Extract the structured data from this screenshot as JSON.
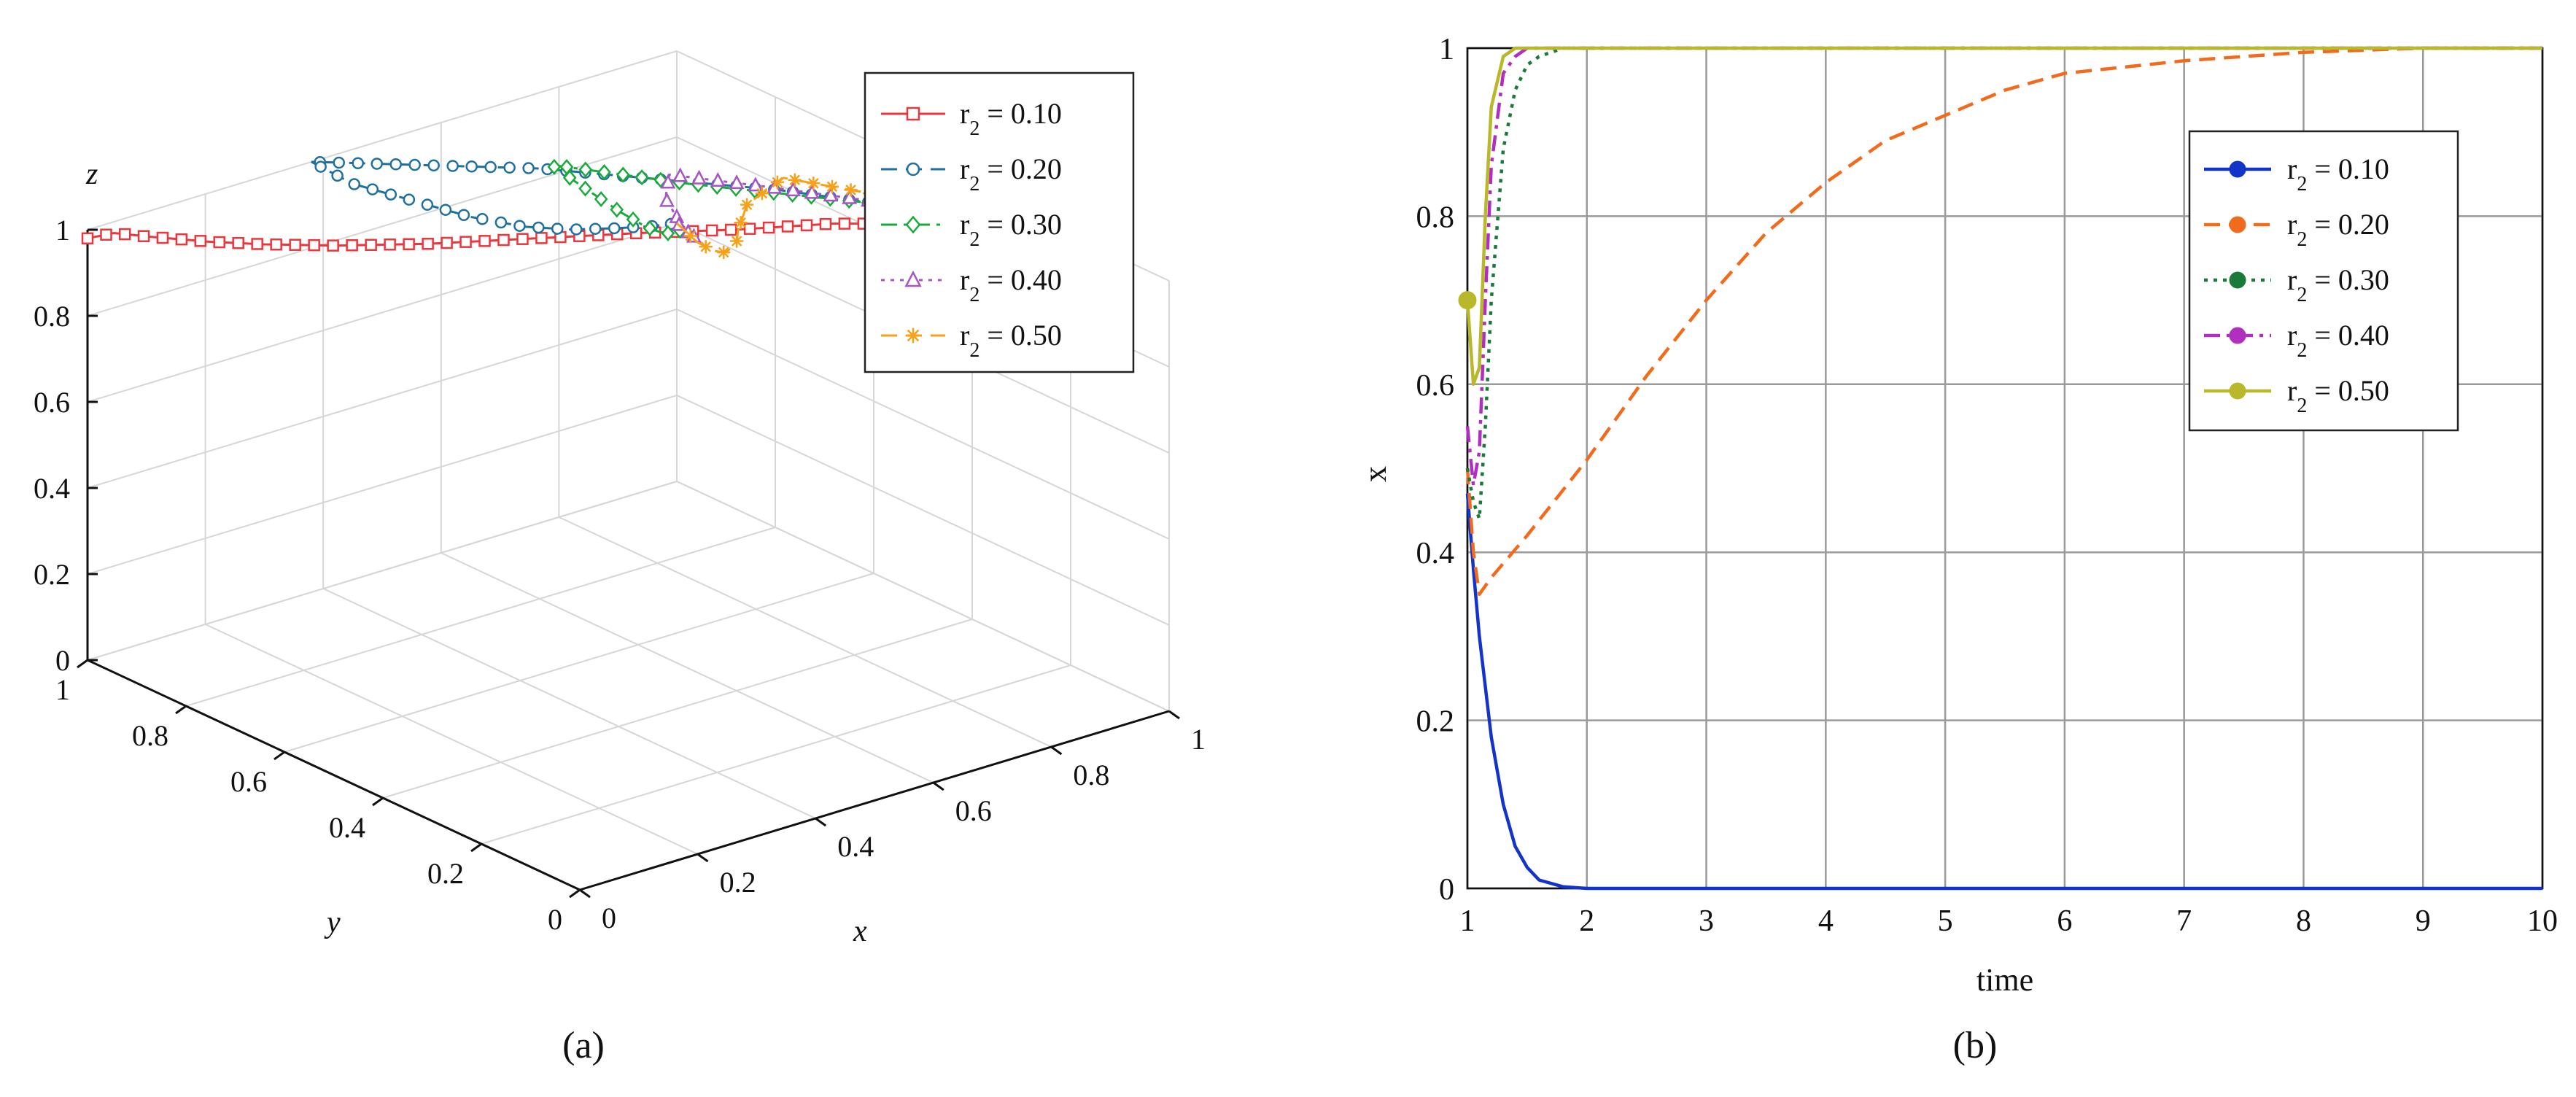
{
  "figure": {
    "caption_a": "(a)",
    "caption_b": "(b)"
  },
  "chart_data": [
    {
      "type": "line",
      "subtype": "3d-trajectory",
      "title": "",
      "xlabel": "x",
      "ylabel": "y",
      "zlabel": "z",
      "xlim": [
        0,
        1
      ],
      "ylim": [
        0,
        1
      ],
      "zlim": [
        0,
        1
      ],
      "x_ticks": [
        "0",
        "0.2",
        "0.4",
        "0.6",
        "0.8",
        "1"
      ],
      "y_ticks": [
        "0",
        "0.2",
        "0.4",
        "0.6",
        "0.8",
        "1"
      ],
      "z_ticks": [
        "0",
        "0.2",
        "0.4",
        "0.6",
        "0.8",
        "1"
      ],
      "grid": true,
      "legend_position": "top-right",
      "series": [
        {
          "label": "0.10",
          "color": "#e8383d",
          "dash": "solid",
          "marker": "square",
          "points": [
            [
              0.0,
              1.0,
              0.98
            ],
            [
              0.02,
              0.97,
              1.0
            ],
            [
              0.05,
              0.93,
              1.0
            ],
            [
              0.1,
              0.87,
              1.0
            ],
            [
              0.15,
              0.82,
              1.0
            ],
            [
              0.22,
              0.76,
              1.0
            ],
            [
              0.32,
              0.69,
              1.0
            ],
            [
              0.44,
              0.62,
              1.0
            ],
            [
              0.56,
              0.55,
              1.0
            ],
            [
              0.67,
              0.48,
              1.0
            ],
            [
              0.78,
              0.42,
              1.0
            ],
            [
              0.87,
              0.35,
              1.0
            ],
            [
              0.94,
              0.29,
              1.0
            ],
            [
              1.0,
              0.23,
              1.0
            ]
          ]
        },
        {
          "label": "0.20",
          "color": "#1f6f9f",
          "dash": "dashed",
          "marker": "circle",
          "points": [
            [
              1.0,
              0.23,
              1.0
            ],
            [
              0.8,
              0.55,
              1.0
            ],
            [
              0.6,
              0.8,
              1.0
            ],
            [
              0.38,
              1.0,
              1.0
            ],
            [
              0.45,
              1.0,
              0.92
            ],
            [
              0.55,
              1.0,
              0.84
            ],
            [
              0.65,
              1.0,
              0.76
            ],
            [
              0.74,
              1.0,
              0.7
            ],
            [
              0.82,
              1.0,
              0.66
            ],
            [
              0.9,
              1.0,
              0.63
            ],
            [
              0.96,
              1.0,
              0.61
            ],
            [
              1.0,
              1.0,
              0.6
            ]
          ]
        },
        {
          "label": "0.30",
          "color": "#1aaa3c",
          "dash": "dashdot",
          "marker": "diamond",
          "points": [
            [
              1.0,
              0.23,
              1.0
            ],
            [
              0.86,
              0.45,
              1.0
            ],
            [
              0.72,
              0.64,
              1.0
            ],
            [
              0.62,
              0.8,
              1.0
            ],
            [
              0.66,
              0.78,
              0.94
            ],
            [
              0.72,
              0.78,
              0.86
            ],
            [
              0.78,
              0.8,
              0.79
            ],
            [
              0.84,
              0.84,
              0.73
            ],
            [
              0.9,
              0.88,
              0.68
            ],
            [
              0.95,
              0.93,
              0.63
            ],
            [
              1.0,
              1.0,
              0.6
            ]
          ]
        },
        {
          "label": "0.40",
          "color": "#a755c2",
          "dash": "dotted",
          "marker": "triangle",
          "points": [
            [
              1.0,
              0.23,
              1.0
            ],
            [
              0.9,
              0.4,
              1.0
            ],
            [
              0.8,
              0.56,
              1.0
            ],
            [
              0.72,
              0.68,
              1.0
            ],
            [
              0.73,
              0.7,
              0.93
            ],
            [
              0.77,
              0.72,
              0.85
            ],
            [
              0.82,
              0.76,
              0.78
            ],
            [
              0.87,
              0.81,
              0.72
            ],
            [
              0.92,
              0.86,
              0.67
            ],
            [
              0.96,
              0.92,
              0.63
            ],
            [
              1.0,
              1.0,
              0.6
            ]
          ]
        },
        {
          "label": "0.50",
          "color": "#f7a11a",
          "dash": "dashed",
          "marker": "star",
          "points": [
            [
              1.0,
              0.23,
              1.0
            ],
            [
              0.94,
              0.36,
              1.0
            ],
            [
              0.88,
              0.48,
              1.0
            ],
            [
              0.83,
              0.58,
              1.0
            ],
            [
              0.81,
              0.63,
              0.92
            ],
            [
              0.82,
              0.66,
              0.84
            ],
            [
              0.85,
              0.7,
              0.77
            ],
            [
              0.88,
              0.76,
              0.71
            ],
            [
              0.92,
              0.83,
              0.66
            ],
            [
              0.96,
              0.91,
              0.62
            ],
            [
              1.0,
              1.0,
              0.6
            ]
          ]
        }
      ]
    },
    {
      "type": "line",
      "title": "",
      "xlabel": "time",
      "ylabel": "x",
      "xlim": [
        1,
        10
      ],
      "ylim": [
        0,
        1
      ],
      "x_ticks": [
        "1",
        "2",
        "3",
        "4",
        "5",
        "6",
        "7",
        "8",
        "9",
        "10"
      ],
      "y_ticks": [
        "0",
        "0.2",
        "0.4",
        "0.6",
        "0.8",
        "1"
      ],
      "grid": true,
      "legend_position": "top-right",
      "series": [
        {
          "label": "0.10",
          "color": "#1334c8",
          "dash": "solid",
          "x": [
            1.0,
            1.05,
            1.1,
            1.2,
            1.3,
            1.4,
            1.5,
            1.6,
            1.8,
            2.0,
            3,
            4,
            5,
            6,
            7,
            8,
            9,
            10
          ],
          "values": [
            0.47,
            0.38,
            0.3,
            0.18,
            0.1,
            0.05,
            0.025,
            0.01,
            0.002,
            0.0,
            0,
            0,
            0,
            0,
            0,
            0,
            0,
            0
          ]
        },
        {
          "label": "0.20",
          "color": "#f26b1d",
          "dash": "dashed",
          "x": [
            1.0,
            1.05,
            1.1,
            1.2,
            1.5,
            2.0,
            2.5,
            3.0,
            3.5,
            4.0,
            4.5,
            5.0,
            5.5,
            6.0,
            7.0,
            8.0,
            9.0,
            10.0
          ],
          "values": [
            0.5,
            0.4,
            0.35,
            0.37,
            0.42,
            0.51,
            0.61,
            0.7,
            0.78,
            0.84,
            0.89,
            0.92,
            0.95,
            0.97,
            0.985,
            0.995,
            1.0,
            1.0
          ]
        },
        {
          "label": "0.30",
          "color": "#1a7a3a",
          "dash": "dotted",
          "x": [
            1.0,
            1.05,
            1.1,
            1.15,
            1.2,
            1.3,
            1.4,
            1.5,
            1.6,
            1.8,
            2.0,
            3,
            4,
            5,
            6,
            7,
            8,
            9,
            10
          ],
          "values": [
            0.5,
            0.46,
            0.44,
            0.55,
            0.7,
            0.88,
            0.95,
            0.98,
            0.99,
            1.0,
            1.0,
            1,
            1,
            1,
            1,
            1,
            1,
            1,
            1
          ]
        },
        {
          "label": "0.40",
          "color": "#b02fc0",
          "dash": "dashdot",
          "x": [
            1.0,
            1.05,
            1.1,
            1.15,
            1.2,
            1.3,
            1.4,
            1.5,
            1.6,
            2.0,
            3,
            4,
            5,
            6,
            7,
            8,
            9,
            10
          ],
          "values": [
            0.55,
            0.48,
            0.52,
            0.7,
            0.86,
            0.97,
            0.99,
            1.0,
            1.0,
            1.0,
            1,
            1,
            1,
            1,
            1,
            1,
            1,
            1
          ]
        },
        {
          "label": "0.50",
          "color": "#b8b82a",
          "dash": "solid",
          "x": [
            1.0,
            1.05,
            1.1,
            1.15,
            1.2,
            1.3,
            1.4,
            1.5,
            2.0,
            3,
            4,
            5,
            6,
            7,
            8,
            9,
            10
          ],
          "values": [
            0.7,
            0.6,
            0.62,
            0.8,
            0.93,
            0.99,
            1.0,
            1.0,
            1.0,
            1,
            1,
            1,
            1,
            1,
            1,
            1,
            1
          ]
        }
      ]
    }
  ]
}
